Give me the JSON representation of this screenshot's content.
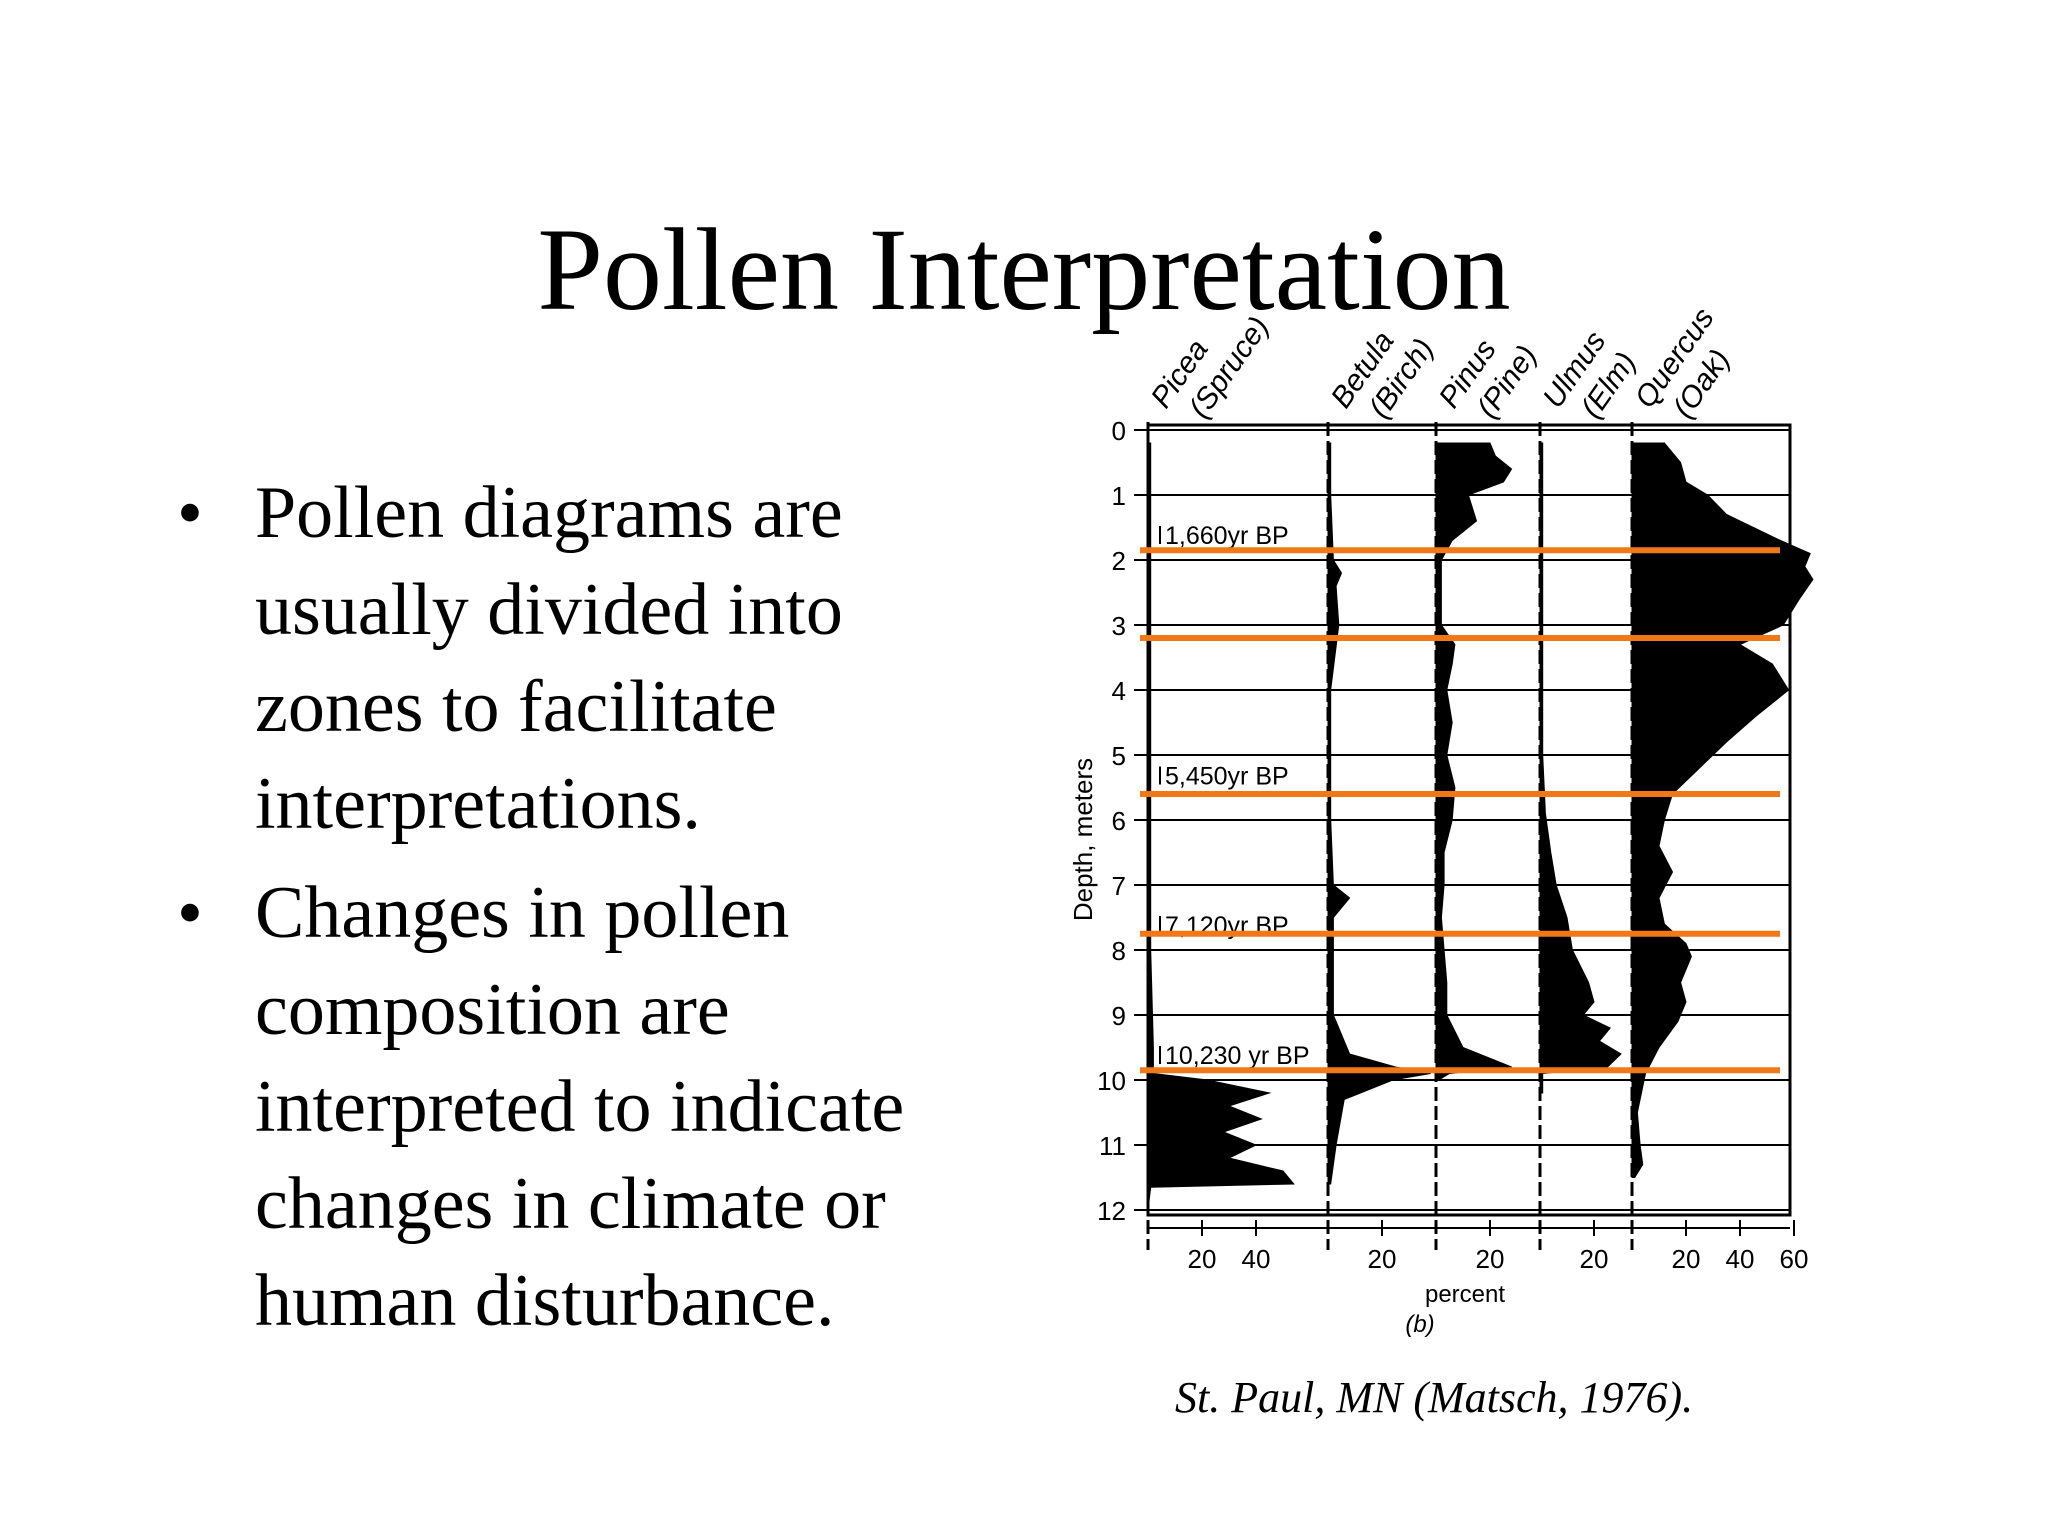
{
  "slide": {
    "title": "Pollen Interpretation",
    "bullets": [
      "Pollen diagrams are usually divided into zones to facilitate interpretations.",
      "Changes in pollen composition are interpreted to indicate changes in climate or human disturbance."
    ],
    "bullet_symbol": "•",
    "caption": "St. Paul, MN (Matsch, 1976)."
  },
  "chart_data": {
    "type": "area",
    "ylabel": "Depth, meters",
    "xlabel": "percent",
    "panel_label": "(b)",
    "y_axis": {
      "min": 0,
      "max": 12,
      "reversed": true,
      "ticks": [
        0,
        1,
        2,
        3,
        4,
        5,
        6,
        7,
        8,
        9,
        10,
        11,
        12
      ]
    },
    "taxa": [
      {
        "name": "Picea",
        "common": "(Spruce)",
        "ticks": [
          20,
          40
        ],
        "max": 55,
        "profile": [
          [
            0.2,
            1
          ],
          [
            1,
            1
          ],
          [
            2,
            1
          ],
          [
            4,
            1
          ],
          [
            6,
            1
          ],
          [
            8,
            1
          ],
          [
            9.5,
            2
          ],
          [
            9.9,
            2
          ],
          [
            10.0,
            22
          ],
          [
            10.2,
            45
          ],
          [
            10.4,
            30
          ],
          [
            10.6,
            42
          ],
          [
            10.8,
            28
          ],
          [
            11.0,
            40
          ],
          [
            11.2,
            30
          ],
          [
            11.4,
            50
          ],
          [
            11.6,
            54
          ],
          [
            11.65,
            1
          ],
          [
            12,
            0
          ]
        ]
      },
      {
        "name": "Betula",
        "common": "(Birch)",
        "ticks": [
          20
        ],
        "max": 40,
        "profile": [
          [
            0.2,
            1
          ],
          [
            1,
            1
          ],
          [
            2.0,
            2
          ],
          [
            2.2,
            5
          ],
          [
            2.4,
            3
          ],
          [
            3.0,
            4
          ],
          [
            4,
            1
          ],
          [
            6,
            1
          ],
          [
            7.0,
            2
          ],
          [
            7.2,
            8
          ],
          [
            7.5,
            2
          ],
          [
            9.0,
            2
          ],
          [
            9.6,
            8
          ],
          [
            9.8,
            25
          ],
          [
            9.9,
            38
          ],
          [
            10.0,
            24
          ],
          [
            10.3,
            6
          ],
          [
            11.0,
            3
          ],
          [
            11.6,
            1
          ]
        ]
      },
      {
        "name": "Pinus",
        "common": "(Pine)",
        "ticks": [
          20
        ],
        "max": 35,
        "profile": [
          [
            0.2,
            20
          ],
          [
            0.4,
            22
          ],
          [
            0.6,
            28
          ],
          [
            0.8,
            25
          ],
          [
            1.0,
            12
          ],
          [
            1.4,
            15
          ],
          [
            1.7,
            6
          ],
          [
            2.0,
            2
          ],
          [
            3.0,
            2
          ],
          [
            3.3,
            7
          ],
          [
            3.6,
            6
          ],
          [
            4.0,
            4
          ],
          [
            4.5,
            6
          ],
          [
            5.0,
            4
          ],
          [
            5.5,
            7
          ],
          [
            6.0,
            6
          ],
          [
            6.5,
            3
          ],
          [
            7.0,
            3
          ],
          [
            7.5,
            2
          ],
          [
            8.0,
            3
          ],
          [
            8.5,
            4
          ],
          [
            9.0,
            4
          ],
          [
            9.5,
            10
          ],
          [
            9.8,
            28
          ],
          [
            9.9,
            5
          ],
          [
            10.0,
            1
          ]
        ]
      },
      {
        "name": "Ulmus",
        "common": "(Elm)",
        "ticks": [
          20
        ],
        "max": 40,
        "profile": [
          [
            0.2,
            1
          ],
          [
            1,
            1
          ],
          [
            3,
            1
          ],
          [
            5,
            1
          ],
          [
            5.9,
            2
          ],
          [
            6.5,
            4
          ],
          [
            7.0,
            6
          ],
          [
            7.5,
            10
          ],
          [
            8.0,
            12
          ],
          [
            8.5,
            18
          ],
          [
            8.8,
            20
          ],
          [
            9.0,
            16
          ],
          [
            9.2,
            26
          ],
          [
            9.4,
            22
          ],
          [
            9.6,
            30
          ],
          [
            9.8,
            25
          ],
          [
            9.9,
            1
          ],
          [
            10.2,
            1
          ]
        ]
      },
      {
        "name": "Quercus",
        "common": "(Oak)",
        "ticks": [
          20,
          40,
          60
        ],
        "max": 70,
        "profile": [
          [
            0.2,
            12
          ],
          [
            0.5,
            18
          ],
          [
            0.8,
            20
          ],
          [
            1.0,
            28
          ],
          [
            1.3,
            35
          ],
          [
            1.7,
            55
          ],
          [
            1.9,
            66
          ],
          [
            2.1,
            64
          ],
          [
            2.3,
            67
          ],
          [
            2.6,
            62
          ],
          [
            3.0,
            56
          ],
          [
            3.3,
            40
          ],
          [
            3.6,
            52
          ],
          [
            4.0,
            58
          ],
          [
            4.4,
            46
          ],
          [
            4.8,
            35
          ],
          [
            5.2,
            25
          ],
          [
            5.6,
            15
          ],
          [
            6.0,
            12
          ],
          [
            6.4,
            10
          ],
          [
            6.8,
            15
          ],
          [
            7.2,
            10
          ],
          [
            7.6,
            12
          ],
          [
            7.9,
            20
          ],
          [
            8.1,
            22
          ],
          [
            8.5,
            18
          ],
          [
            8.8,
            20
          ],
          [
            9.1,
            17
          ],
          [
            9.5,
            10
          ],
          [
            9.9,
            5
          ],
          [
            10.5,
            2
          ],
          [
            11.0,
            3
          ],
          [
            11.3,
            4
          ],
          [
            11.5,
            1
          ]
        ]
      }
    ],
    "dates": [
      {
        "label": "1,660yr BP",
        "depth": 1.6
      },
      {
        "label": "5,450yr BP",
        "depth": 5.3
      },
      {
        "label": "7,120yr BP",
        "depth": 7.6
      },
      {
        "label": "10,230 yr BP",
        "depth": 9.6
      }
    ],
    "zone_lines": {
      "depths": [
        1.85,
        3.2,
        5.6,
        7.75,
        9.85
      ],
      "color": "#f07819"
    },
    "grid": true,
    "fill_color": "#000000"
  }
}
